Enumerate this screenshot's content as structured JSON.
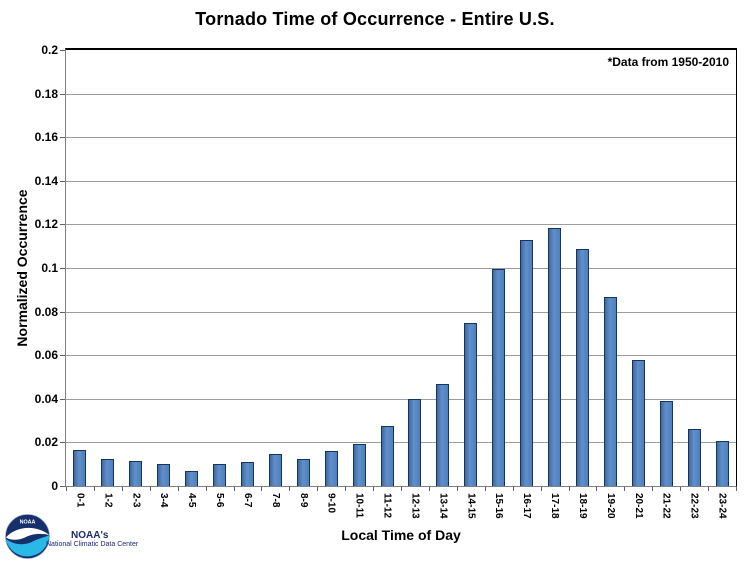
{
  "chart_data": {
    "type": "bar",
    "title": "Tornado Time of Occurrence - Entire U.S.",
    "xlabel": "Local Time of Day",
    "ylabel": "Normalized Occurrence",
    "annotation": "*Data from 1950-2010",
    "ylim": [
      0,
      0.2
    ],
    "ytick_step": 0.02,
    "ytick_labels": [
      "0",
      "0.02",
      "0.04",
      "0.06",
      "0.08",
      "0.1",
      "0.12",
      "0.14",
      "0.16",
      "0.18",
      "0.2"
    ],
    "grid": true,
    "legend": false,
    "categories": [
      "0-1",
      "1-2",
      "2-3",
      "3-4",
      "4-5",
      "5-6",
      "6-7",
      "7-8",
      "8-9",
      "9-10",
      "10-11",
      "11-12",
      "12-13",
      "13-14",
      "14-15",
      "15-16",
      "16-17",
      "17-18",
      "18-19",
      "19-20",
      "20-21",
      "21-22",
      "22-23",
      "23-24"
    ],
    "values": [
      0.0165,
      0.0125,
      0.0115,
      0.01,
      0.007,
      0.01,
      0.011,
      0.0145,
      0.0125,
      0.016,
      0.0195,
      0.0275,
      0.04,
      0.047,
      0.075,
      0.0995,
      0.113,
      0.1185,
      0.1085,
      0.0865,
      0.058,
      0.039,
      0.026,
      0.0205
    ],
    "bar_fill": "#4f81bd",
    "bar_border": "#16355c",
    "gridline_color": "#9d9d9d",
    "axis_color": "#808080"
  },
  "logo": {
    "emblem_text": "NOAA",
    "org": "NOAA's",
    "sub": "National Climatic Data Center"
  }
}
